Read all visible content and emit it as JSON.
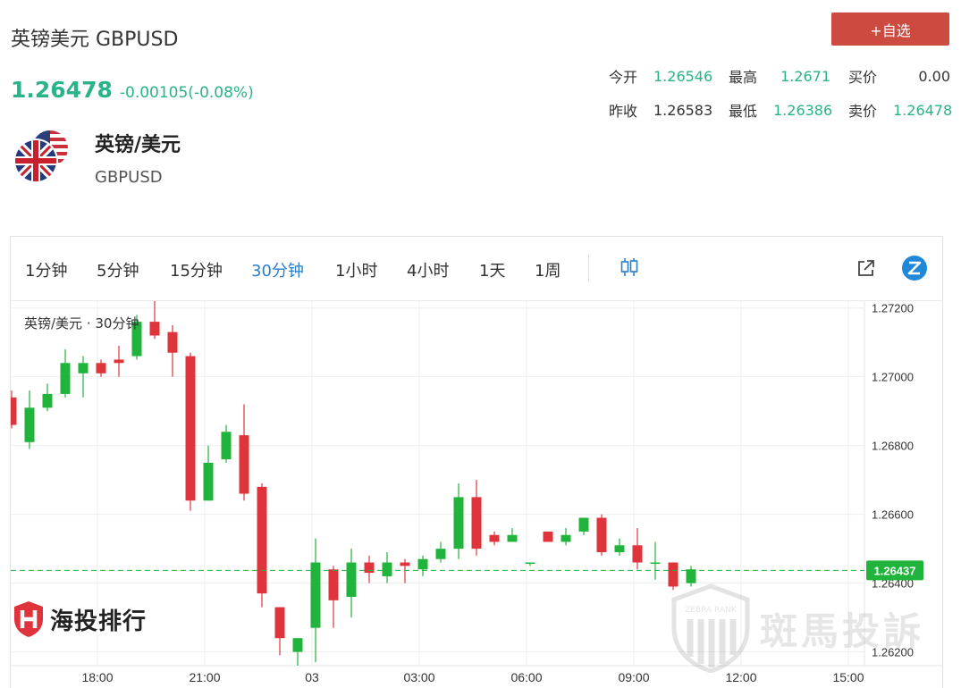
{
  "header": {
    "title": "英镑美元 GBPUSD",
    "price": "1.26478",
    "change": "-0.00105(-0.08%)",
    "add_button": "+自选"
  },
  "stats": {
    "row1": [
      {
        "label": "今开",
        "value": "1.26546",
        "color": "green"
      },
      {
        "label": "最高",
        "value": "1.2671",
        "color": "green"
      },
      {
        "label": "买价",
        "value": "0.00",
        "color": "dark"
      }
    ],
    "row2": [
      {
        "label": "昨收",
        "value": "1.26583",
        "color": "dark"
      },
      {
        "label": "最低",
        "value": "1.26386",
        "color": "green"
      },
      {
        "label": "卖价",
        "value": "1.26478",
        "color": "green"
      }
    ]
  },
  "pair": {
    "name": "英镑/美元",
    "code": "GBPUSD",
    "icon": "gbp-usd-flag-icon"
  },
  "timeframes": [
    "1分钟",
    "5分钟",
    "15分钟",
    "30分钟",
    "1小时",
    "4小时",
    "1天",
    "1周"
  ],
  "active_timeframe": "30分钟",
  "toolbar_icons": [
    "candlestick-icon",
    "external-link-icon",
    "zebra-logo-icon"
  ],
  "chart_legend": "英镑/美元 · 30分钟",
  "brand_text": "海投排行",
  "watermark_text": "斑馬投訴",
  "watermark_sub": "ZEBRA RANK",
  "colors": {
    "up": "#20b43c",
    "down": "#e0343c",
    "accent": "#29b38a",
    "button": "#cc4a3f",
    "price_tag": "#20b43c"
  },
  "chart_data": {
    "type": "candlestick",
    "y_ticks": [
      "1.27200",
      "1.27000",
      "1.26800",
      "1.26600",
      "1.26400",
      "1.26200"
    ],
    "ylim": [
      1.2616,
      1.2722
    ],
    "x_ticks": [
      "18:00",
      "21:00",
      "03",
      "03:00",
      "06:00",
      "09:00",
      "12:00",
      "15:00"
    ],
    "current_price": "1.26437",
    "current_value": 1.26437,
    "candles": [
      {
        "o": 1.2694,
        "h": 1.2696,
        "l": 1.2685,
        "c": 1.2686
      },
      {
        "o": 1.2681,
        "h": 1.2696,
        "l": 1.2679,
        "c": 1.2691
      },
      {
        "o": 1.2691,
        "h": 1.2698,
        "l": 1.269,
        "c": 1.2695
      },
      {
        "o": 1.2695,
        "h": 1.2708,
        "l": 1.2694,
        "c": 1.2704
      },
      {
        "o": 1.2701,
        "h": 1.2706,
        "l": 1.2694,
        "c": 1.2704
      },
      {
        "o": 1.2704,
        "h": 1.2705,
        "l": 1.27,
        "c": 1.2701
      },
      {
        "o": 1.2705,
        "h": 1.2709,
        "l": 1.27,
        "c": 1.2704
      },
      {
        "o": 1.2706,
        "h": 1.2718,
        "l": 1.2705,
        "c": 1.2716
      },
      {
        "o": 1.2716,
        "h": 1.2722,
        "l": 1.2711,
        "c": 1.2712
      },
      {
        "o": 1.2713,
        "h": 1.2715,
        "l": 1.27,
        "c": 1.2707
      },
      {
        "o": 1.2706,
        "h": 1.2707,
        "l": 1.2661,
        "c": 1.2664
      },
      {
        "o": 1.2664,
        "h": 1.268,
        "l": 1.2664,
        "c": 1.2675
      },
      {
        "o": 1.2676,
        "h": 1.2686,
        "l": 1.2675,
        "c": 1.2684
      },
      {
        "o": 1.2683,
        "h": 1.2692,
        "l": 1.2664,
        "c": 1.2666
      },
      {
        "o": 1.2668,
        "h": 1.2669,
        "l": 1.2633,
        "c": 1.2637
      },
      {
        "o": 1.2633,
        "h": 1.2633,
        "l": 1.2619,
        "c": 1.2624
      },
      {
        "o": 1.262,
        "h": 1.2624,
        "l": 1.2616,
        "c": 1.2624
      },
      {
        "o": 1.2627,
        "h": 1.2653,
        "l": 1.2617,
        "c": 1.2646
      },
      {
        "o": 1.2644,
        "h": 1.2645,
        "l": 1.2627,
        "c": 1.2635
      },
      {
        "o": 1.2636,
        "h": 1.265,
        "l": 1.263,
        "c": 1.2646
      },
      {
        "o": 1.2646,
        "h": 1.2648,
        "l": 1.264,
        "c": 1.2643
      },
      {
        "o": 1.2642,
        "h": 1.2649,
        "l": 1.264,
        "c": 1.2646
      },
      {
        "o": 1.2646,
        "h": 1.2647,
        "l": 1.264,
        "c": 1.2645
      },
      {
        "o": 1.2644,
        "h": 1.2648,
        "l": 1.2642,
        "c": 1.2647
      },
      {
        "o": 1.2647,
        "h": 1.2652,
        "l": 1.2646,
        "c": 1.265
      },
      {
        "o": 1.265,
        "h": 1.2669,
        "l": 1.2647,
        "c": 1.2665
      },
      {
        "o": 1.2665,
        "h": 1.267,
        "l": 1.2648,
        "c": 1.265
      },
      {
        "o": 1.2654,
        "h": 1.2655,
        "l": 1.2651,
        "c": 1.2652
      },
      {
        "o": 1.2652,
        "h": 1.2656,
        "l": 1.2652,
        "c": 1.2654
      },
      {
        "o": 1.2646,
        "h": 1.2646,
        "l": 1.2645,
        "c": 1.2646
      },
      {
        "o": 1.2655,
        "h": 1.2655,
        "l": 1.2652,
        "c": 1.2652
      },
      {
        "o": 1.2652,
        "h": 1.2656,
        "l": 1.2651,
        "c": 1.2654
      },
      {
        "o": 1.2655,
        "h": 1.2659,
        "l": 1.2654,
        "c": 1.2659
      },
      {
        "o": 1.2659,
        "h": 1.266,
        "l": 1.2648,
        "c": 1.2649
      },
      {
        "o": 1.2649,
        "h": 1.2653,
        "l": 1.2648,
        "c": 1.2651
      },
      {
        "o": 1.2651,
        "h": 1.2656,
        "l": 1.2644,
        "c": 1.2646
      },
      {
        "o": 1.2646,
        "h": 1.2652,
        "l": 1.2641,
        "c": 1.2646
      },
      {
        "o": 1.2646,
        "h": 1.2646,
        "l": 1.2638,
        "c": 1.2639
      },
      {
        "o": 1.264,
        "h": 1.2645,
        "l": 1.2639,
        "c": 1.2644
      }
    ]
  }
}
